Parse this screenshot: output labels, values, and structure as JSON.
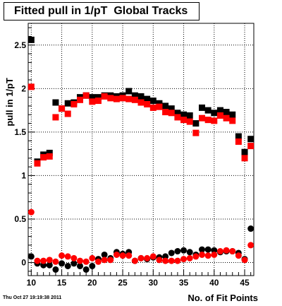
{
  "title": "Fitted pull in 1/pT  Global Tracks",
  "timestamp": "Thu Oct 27 19:19:38 2011",
  "chart_data": {
    "type": "scatter",
    "xlabel": "No. of Fit Points",
    "ylabel": "pull in 1/pT",
    "xlim": [
      9.5,
      46.5
    ],
    "ylim": [
      -0.15,
      2.75
    ],
    "xticks": [
      10,
      15,
      20,
      25,
      30,
      35,
      40,
      45
    ],
    "yticks": [
      0,
      0.5,
      1,
      1.5,
      2,
      2.5
    ],
    "ytick_labels": [
      "0",
      "0.5",
      "1",
      "1.5",
      "2",
      "2.5"
    ],
    "grid": true,
    "series": [
      {
        "marker": "square",
        "color": "#000000",
        "x": [
          10,
          11,
          12,
          13,
          14,
          15,
          16,
          17,
          18,
          19,
          20,
          21,
          22,
          23,
          24,
          25,
          26,
          27,
          28,
          29,
          30,
          31,
          32,
          33,
          34,
          35,
          36,
          37,
          38,
          39,
          40,
          41,
          42,
          43,
          44,
          45,
          46
        ],
        "values": [
          2.56,
          1.16,
          1.24,
          1.26,
          1.84,
          1.77,
          1.83,
          1.84,
          1.9,
          1.92,
          1.9,
          1.9,
          1.92,
          1.92,
          1.91,
          1.92,
          1.97,
          1.92,
          1.91,
          1.88,
          1.86,
          1.83,
          1.8,
          1.77,
          1.72,
          1.7,
          1.69,
          1.6,
          1.78,
          1.75,
          1.72,
          1.75,
          1.73,
          1.7,
          1.45,
          1.27,
          1.42
        ]
      },
      {
        "marker": "square",
        "color": "#ff0000",
        "x": [
          10,
          11,
          12,
          13,
          14,
          15,
          16,
          17,
          18,
          19,
          20,
          21,
          22,
          23,
          24,
          25,
          26,
          27,
          28,
          29,
          30,
          31,
          32,
          33,
          34,
          35,
          36,
          37,
          38,
          39,
          40,
          41,
          42,
          43,
          44,
          45,
          46
        ],
        "values": [
          2.02,
          1.14,
          1.21,
          1.22,
          1.67,
          1.77,
          1.71,
          1.82,
          1.87,
          1.92,
          1.85,
          1.86,
          1.91,
          1.89,
          1.88,
          1.89,
          1.88,
          1.87,
          1.84,
          1.82,
          1.78,
          1.79,
          1.73,
          1.72,
          1.67,
          1.64,
          1.62,
          1.49,
          1.66,
          1.64,
          1.63,
          1.69,
          1.66,
          1.63,
          1.39,
          1.2,
          1.34
        ]
      },
      {
        "marker": "circle",
        "color": "#000000",
        "x": [
          10,
          11,
          12,
          13,
          14,
          15,
          16,
          17,
          18,
          19,
          20,
          21,
          22,
          23,
          24,
          25,
          26,
          27,
          28,
          29,
          30,
          31,
          32,
          33,
          34,
          35,
          36,
          37,
          38,
          39,
          40,
          41,
          42,
          43,
          44,
          45,
          46
        ],
        "values": [
          0.07,
          -0.01,
          -0.03,
          -0.03,
          -0.08,
          -0.01,
          -0.04,
          -0.01,
          -0.04,
          -0.08,
          -0.04,
          0.04,
          0.09,
          0.05,
          0.12,
          0.1,
          0.12,
          0.02,
          0.05,
          0.04,
          0.06,
          0.06,
          0.07,
          0.11,
          0.13,
          0.14,
          0.12,
          0.09,
          0.15,
          0.15,
          0.14,
          0.12,
          0.13,
          0.13,
          0.11,
          0.04,
          0.39
        ]
      },
      {
        "marker": "circle",
        "color": "#ff0000",
        "x": [
          10,
          11,
          12,
          13,
          14,
          15,
          16,
          17,
          18,
          19,
          20,
          21,
          22,
          23,
          24,
          25,
          26,
          27,
          28,
          29,
          30,
          31,
          32,
          33,
          34,
          35,
          36,
          37,
          38,
          39,
          40,
          41,
          42,
          43,
          44,
          45,
          46
        ],
        "values": [
          0.58,
          0.02,
          0.02,
          0.03,
          0.01,
          0.08,
          0.07,
          0.05,
          0.02,
          0.01,
          0.05,
          0.01,
          0.03,
          0.03,
          0.09,
          0.08,
          0.08,
          0.02,
          0.05,
          0.05,
          0.07,
          0.03,
          0.02,
          0.02,
          0.02,
          0.04,
          0.05,
          0.07,
          0.09,
          0.08,
          0.09,
          0.13,
          0.14,
          0.13,
          0.08,
          0.03,
          0.2
        ]
      }
    ]
  }
}
